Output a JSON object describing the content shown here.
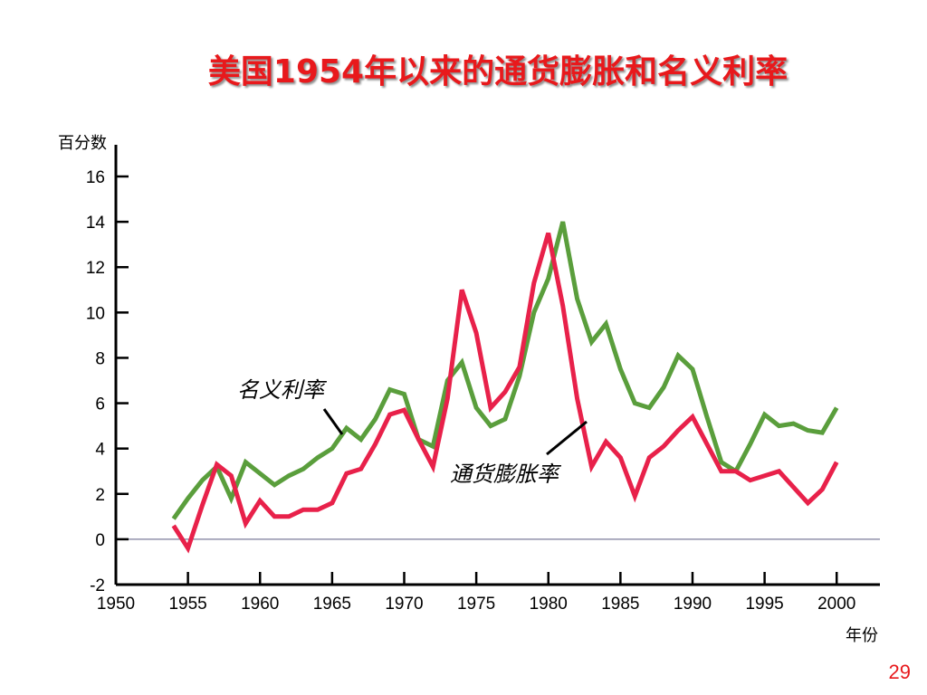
{
  "slide": {
    "title": "美国1954年以来的通货膨胀和名义利率",
    "page_number": "29"
  },
  "colors": {
    "nominal_rate": "#5a9e3c",
    "inflation": "#e8214a",
    "axis": "#000000",
    "zero_line": "#7b7b99",
    "title": "#e8191c"
  },
  "chart_data": {
    "type": "line",
    "title": "美国1954年以来的通货膨胀和名义利率",
    "ylabel": "百分数",
    "xlabel": "年份",
    "xlim": [
      1950,
      2003
    ],
    "ylim": [
      -2,
      17
    ],
    "x_ticks": [
      1950,
      1955,
      1960,
      1965,
      1970,
      1975,
      1980,
      1985,
      1990,
      1995,
      2000
    ],
    "x_tick_labels": [
      "1950",
      "1955",
      "1960",
      "1965",
      "1970",
      "1975",
      "1980",
      "1985",
      "1990",
      "1995",
      "2000"
    ],
    "y_ticks": [
      16,
      14,
      12,
      10,
      8,
      6,
      4,
      2,
      0,
      -2
    ],
    "y_tick_labels": [
      "16",
      "14",
      "12",
      "10",
      "8",
      "6",
      "4",
      "2",
      "0",
      "-2"
    ],
    "grid": false,
    "zero_line": true,
    "series": [
      {
        "name": "名义利率",
        "label": "名义利率",
        "x": [
          1954,
          1955,
          1956,
          1957,
          1958,
          1959,
          1960,
          1961,
          1962,
          1963,
          1964,
          1965,
          1966,
          1967,
          1968,
          1969,
          1970,
          1971,
          1972,
          1973,
          1974,
          1975,
          1976,
          1977,
          1978,
          1979,
          1980,
          1981,
          1982,
          1983,
          1984,
          1985,
          1986,
          1987,
          1988,
          1989,
          1990,
          1991,
          1992,
          1993,
          1994,
          1995,
          1996,
          1997,
          1998,
          1999,
          2000
        ],
        "y": [
          0.9,
          1.8,
          2.6,
          3.2,
          1.8,
          3.4,
          2.9,
          2.4,
          2.8,
          3.1,
          3.6,
          4.0,
          4.9,
          4.4,
          5.3,
          6.6,
          6.4,
          4.4,
          4.1,
          7.0,
          7.8,
          5.8,
          5.0,
          5.3,
          7.2,
          10.0,
          11.5,
          14.0,
          10.6,
          8.7,
          9.5,
          7.5,
          6.0,
          5.8,
          6.7,
          8.1,
          7.5,
          5.4,
          3.4,
          3.0,
          4.2,
          5.5,
          5.0,
          5.1,
          4.8,
          4.7,
          5.8
        ]
      },
      {
        "name": "通货膨胀率",
        "label": "通货膨胀率",
        "x": [
          1954,
          1955,
          1956,
          1957,
          1958,
          1959,
          1960,
          1961,
          1962,
          1963,
          1964,
          1965,
          1966,
          1967,
          1968,
          1969,
          1970,
          1971,
          1972,
          1973,
          1974,
          1975,
          1976,
          1977,
          1978,
          1979,
          1980,
          1981,
          1982,
          1983,
          1984,
          1985,
          1986,
          1987,
          1988,
          1989,
          1990,
          1991,
          1992,
          1993,
          1994,
          1995,
          1996,
          1997,
          1998,
          1999,
          2000
        ],
        "y": [
          0.6,
          -0.4,
          1.5,
          3.3,
          2.8,
          0.7,
          1.7,
          1.0,
          1.0,
          1.3,
          1.3,
          1.6,
          2.9,
          3.1,
          4.2,
          5.5,
          5.7,
          4.4,
          3.2,
          6.2,
          11.0,
          9.1,
          5.8,
          6.5,
          7.6,
          11.3,
          13.5,
          10.3,
          6.2,
          3.2,
          4.3,
          3.6,
          1.9,
          3.6,
          4.1,
          4.8,
          5.4,
          4.2,
          3.0,
          3.0,
          2.6,
          2.8,
          3.0,
          2.3,
          1.6,
          2.2,
          3.4
        ]
      }
    ]
  }
}
